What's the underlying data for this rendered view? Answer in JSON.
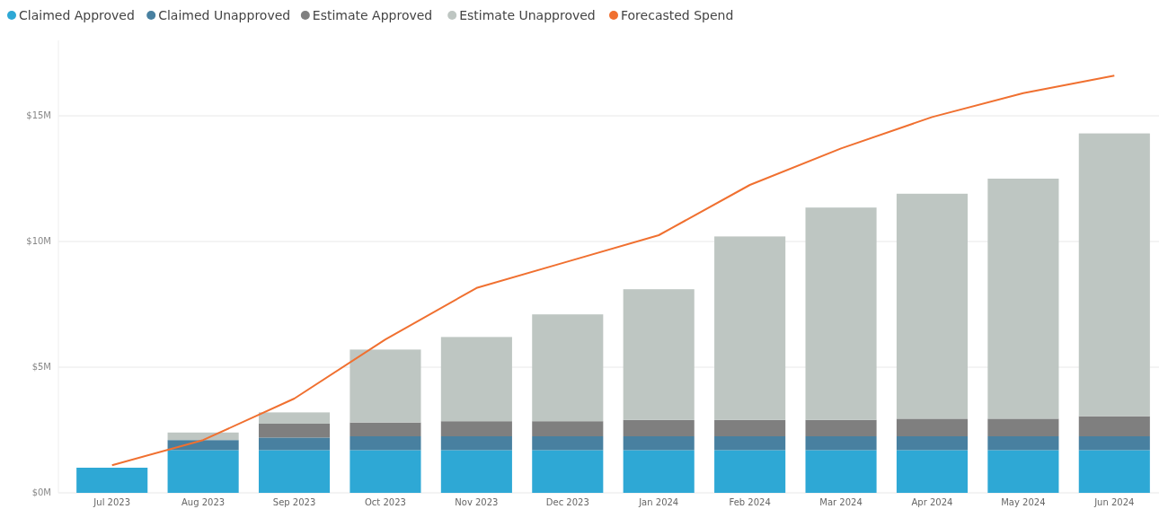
{
  "chart_data": {
    "type": "bar",
    "stacked": true,
    "categories": [
      "Jul 2023",
      "Aug 2023",
      "Sep 2023",
      "Oct 2023",
      "Nov 2023",
      "Dec 2023",
      "Jan 2024",
      "Feb 2024",
      "Mar 2024",
      "Apr 2024",
      "May 2024",
      "Jun 2024"
    ],
    "series": [
      {
        "name": "Claimed Approved",
        "color": "#2ea8d5",
        "values": [
          1.0,
          1.7,
          1.7,
          1.7,
          1.7,
          1.7,
          1.7,
          1.7,
          1.7,
          1.7,
          1.7,
          1.7
        ]
      },
      {
        "name": "Claimed Unapproved",
        "color": "#4880a0",
        "values": [
          0,
          0.4,
          0.5,
          0.55,
          0.55,
          0.55,
          0.55,
          0.55,
          0.55,
          0.55,
          0.55,
          0.55
        ]
      },
      {
        "name": "Estimate Approved",
        "color": "#7f7f7f",
        "values": [
          0,
          0,
          0.55,
          0.55,
          0.6,
          0.6,
          0.65,
          0.65,
          0.65,
          0.7,
          0.7,
          0.8
        ]
      },
      {
        "name": "Estimate Unapproved",
        "color": "#bec6c2",
        "values": [
          0,
          0.3,
          0.45,
          2.9,
          3.35,
          4.25,
          5.2,
          7.3,
          8.45,
          8.95,
          9.55,
          11.25
        ]
      },
      {
        "name": "Forecasted Spend",
        "type": "line",
        "color": "#f07030",
        "values": [
          1.1,
          2.1,
          3.75,
          6.1,
          8.15,
          9.2,
          10.25,
          12.25,
          13.7,
          14.95,
          15.9,
          16.6
        ]
      }
    ],
    "ylim": [
      0,
      18
    ],
    "yticks": [
      {
        "value": 0,
        "label": "$0M"
      },
      {
        "value": 5,
        "label": "$5M"
      },
      {
        "value": 10,
        "label": "$10M"
      },
      {
        "value": 15,
        "label": "$15M"
      }
    ],
    "grid": "y",
    "legend": "top left",
    "marker": "none"
  }
}
